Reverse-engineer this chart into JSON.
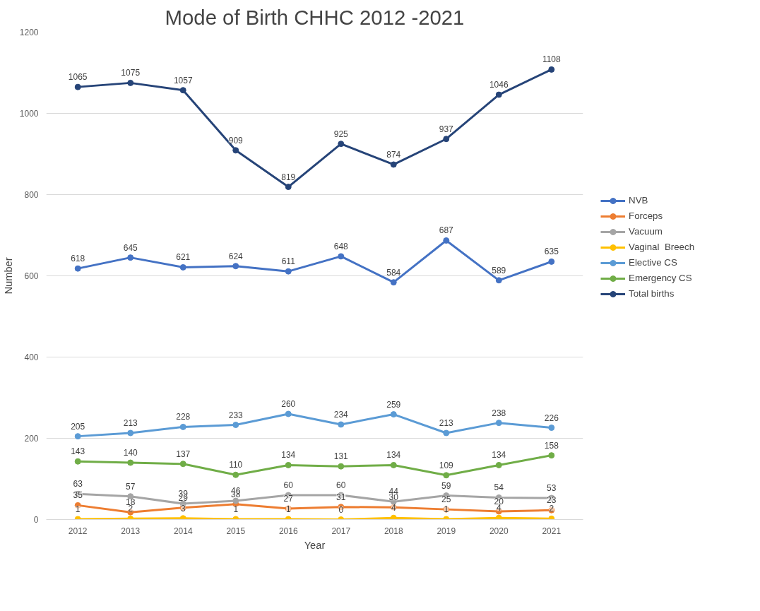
{
  "chart_data": {
    "type": "line",
    "title": "Mode of Birth CHHC 2012 -2021",
    "xlabel": "Year",
    "ylabel": "Number",
    "categories": [
      "2012",
      "2013",
      "2014",
      "2015",
      "2016",
      "2017",
      "2018",
      "2019",
      "2020",
      "2021"
    ],
    "series": [
      {
        "name": "NVB",
        "color": "#4472c4",
        "values": [
          618,
          645,
          621,
          624,
          611,
          648,
          584,
          687,
          589,
          635
        ]
      },
      {
        "name": "Forceps",
        "color": "#ed7d31",
        "values": [
          35,
          18,
          29,
          38,
          27,
          31,
          30,
          25,
          20,
          23
        ]
      },
      {
        "name": "Vacuum",
        "color": "#a5a5a5",
        "values": [
          63,
          57,
          39,
          46,
          60,
          60,
          44,
          59,
          54,
          53
        ]
      },
      {
        "name": "Vaginal  Breech",
        "color": "#ffc000",
        "values": [
          1,
          2,
          3,
          1,
          1,
          0,
          4,
          1,
          4,
          2
        ]
      },
      {
        "name": "Elective CS",
        "color": "#5b9bd5",
        "values": [
          205,
          213,
          228,
          233,
          260,
          234,
          259,
          213,
          238,
          226
        ]
      },
      {
        "name": "Emergency CS",
        "color": "#70ad47",
        "values": [
          143,
          140,
          137,
          110,
          134,
          131,
          134,
          109,
          134,
          158
        ]
      },
      {
        "name": "Total births",
        "color": "#264478",
        "values": [
          1065,
          1075,
          1057,
          909,
          819,
          925,
          874,
          937,
          1046,
          1108
        ]
      }
    ],
    "ylim": [
      0,
      1200
    ],
    "yticks": [
      0,
      200,
      400,
      600,
      800,
      1000,
      1200
    ],
    "grid": "y",
    "legend": "right",
    "marker": "circle",
    "line_style": "solid",
    "data_labels": true
  }
}
